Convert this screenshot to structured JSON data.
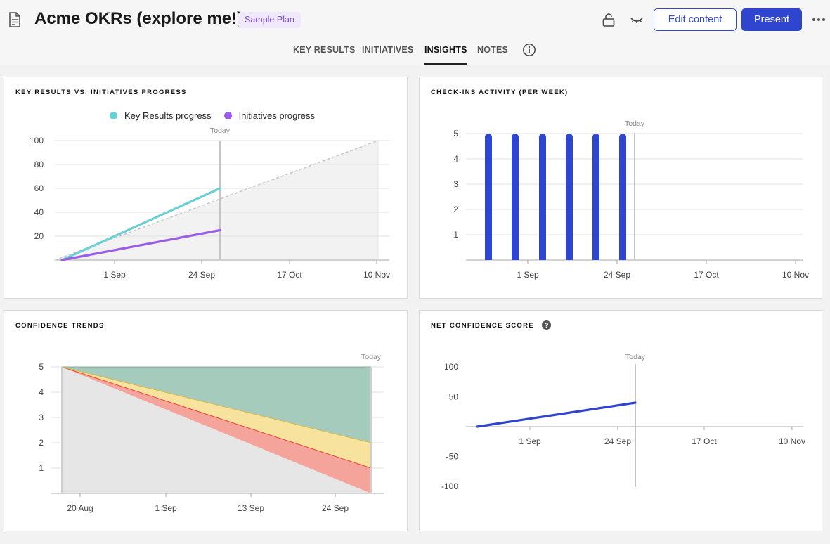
{
  "header": {
    "title": "Acme OKRs (explore me!)",
    "badge": "Sample Plan",
    "edit_label": "Edit content",
    "present_label": "Present",
    "icons": [
      "document-icon",
      "lock-icon",
      "hide-icon",
      "more-icon",
      "info-icon"
    ]
  },
  "tabs": [
    {
      "label": "KEY RESULTS",
      "active": false
    },
    {
      "label": "INITIATIVES",
      "active": false
    },
    {
      "label": "INSIGHTS",
      "active": true
    },
    {
      "label": "NOTES",
      "active": false
    }
  ],
  "today_label": "Today",
  "colors": {
    "kr": "#6ccfd6",
    "initiatives": "#9b5de5",
    "bars": "#2f45cf",
    "green": "#a5cbbd",
    "yellow": "#f7e29e",
    "red": "#f5a49c",
    "grey": "#e6e6e6"
  },
  "chart_data": [
    {
      "id": "progress",
      "type": "line",
      "title": "KEY RESULTS VS. INITIATIVES PROGRESS",
      "legend": [
        "Key Results progress",
        "Initiatives progress"
      ],
      "x_ticks": [
        "1 Sep",
        "24 Sep",
        "17 Oct",
        "10 Nov"
      ],
      "y_ticks": [
        20,
        40,
        60,
        80,
        100
      ],
      "ylim": [
        0,
        100
      ],
      "series": [
        {
          "name": "Key Results progress",
          "x": [
            "start",
            "Today"
          ],
          "values": [
            0,
            60
          ]
        },
        {
          "name": "Initiatives progress",
          "x": [
            "start",
            "Today"
          ],
          "values": [
            0,
            25
          ]
        },
        {
          "name": "Expected",
          "x": [
            "start",
            "end"
          ],
          "values": [
            0,
            100
          ]
        }
      ]
    },
    {
      "id": "checkins",
      "type": "bar",
      "title": "CHECK-INS ACTIVITY (PER WEEK)",
      "x_ticks": [
        "1 Sep",
        "24 Sep",
        "17 Oct",
        "10 Nov"
      ],
      "y_ticks": [
        1,
        2,
        3,
        4,
        5
      ],
      "ylim": [
        0,
        5
      ],
      "values": [
        5,
        5,
        5,
        5,
        5,
        5
      ]
    },
    {
      "id": "confidence",
      "type": "area",
      "title": "CONFIDENCE TRENDS",
      "x_ticks": [
        "20 Aug",
        "1 Sep",
        "13 Sep",
        "24 Sep"
      ],
      "y_ticks": [
        1,
        2,
        3,
        4,
        5
      ],
      "ylim": [
        0,
        5
      ],
      "series": [
        {
          "name": "boundary-top",
          "values": [
            5,
            5
          ]
        },
        {
          "name": "boundary-yellow",
          "values": [
            5,
            2
          ]
        },
        {
          "name": "boundary-red",
          "values": [
            5,
            1
          ]
        },
        {
          "name": "boundary-grey",
          "values": [
            5,
            0
          ]
        }
      ]
    },
    {
      "id": "net",
      "type": "line",
      "title": "NET CONFIDENCE SCORE",
      "x_ticks": [
        "1 Sep",
        "24 Sep",
        "17 Oct",
        "10 Nov"
      ],
      "y_ticks": [
        100,
        50,
        -50,
        -100
      ],
      "ylim": [
        -100,
        100
      ],
      "series": [
        {
          "name": "Net confidence",
          "x": [
            "start",
            "Today"
          ],
          "values": [
            0,
            40
          ]
        }
      ]
    }
  ]
}
